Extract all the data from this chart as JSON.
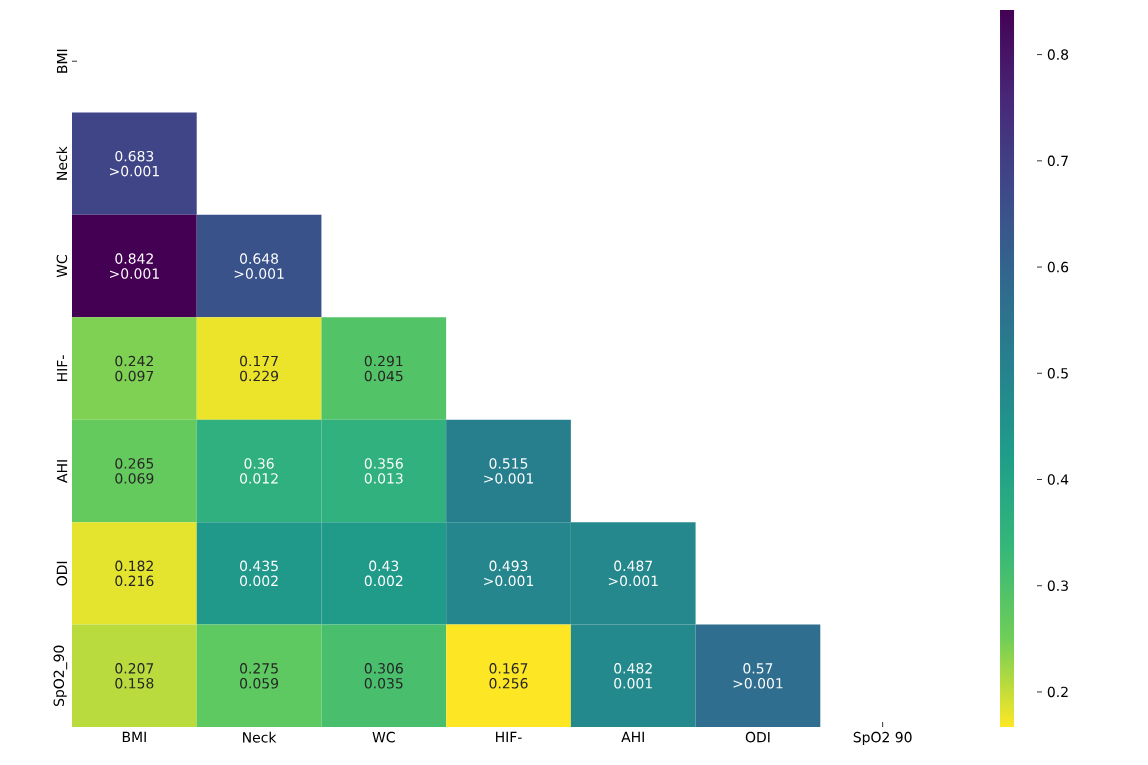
{
  "chart_data": {
    "type": "heatmap",
    "categories": [
      "BMI",
      "Neck",
      "WC",
      "HIF-",
      "AHI",
      "ODI",
      "SpO2 90"
    ],
    "y_categories": [
      "BMI",
      "Neck",
      "WC",
      "HIF-",
      "AHI",
      "ODI",
      "SpO2_90"
    ],
    "cells": [
      [
        null,
        null,
        null,
        null,
        null,
        null,
        null
      ],
      [
        0.683,
        null,
        null,
        null,
        null,
        null,
        null
      ],
      [
        0.842,
        0.648,
        null,
        null,
        null,
        null,
        null
      ],
      [
        0.242,
        0.177,
        0.291,
        null,
        null,
        null,
        null
      ],
      [
        0.265,
        0.36,
        0.356,
        0.515,
        null,
        null,
        null
      ],
      [
        0.182,
        0.435,
        0.43,
        0.493,
        0.487,
        null,
        null
      ],
      [
        0.207,
        0.275,
        0.306,
        0.167,
        0.482,
        0.57,
        null
      ]
    ],
    "cell_labels": [
      [
        null,
        null,
        null,
        null,
        null,
        null,
        null
      ],
      [
        "0.683 >0.001",
        null,
        null,
        null,
        null,
        null,
        null
      ],
      [
        "0.842 >0.001",
        "0.648 >0.001",
        null,
        null,
        null,
        null,
        null
      ],
      [
        "0.242 0.097",
        "0.177 0.229",
        "0.291 0.045",
        null,
        null,
        null,
        null
      ],
      [
        "0.265 0.069",
        "0.36 0.012",
        "0.356 0.013",
        "0.515 >0.001",
        null,
        null,
        null
      ],
      [
        "0.182 0.216",
        "0.435 0.002",
        "0.43 0.002",
        "0.493 >0.001",
        "0.487 >0.001",
        null,
        null
      ],
      [
        "0.207 0.158",
        "0.275 0.059",
        "0.306 0.035",
        "0.167 0.256",
        "0.482 0.001",
        "0.57 >0.001",
        null
      ]
    ],
    "clim": [
      0.167,
      0.842
    ],
    "cticks": [
      0.2,
      0.3,
      0.4,
      0.5,
      0.6,
      0.7,
      0.8
    ]
  }
}
